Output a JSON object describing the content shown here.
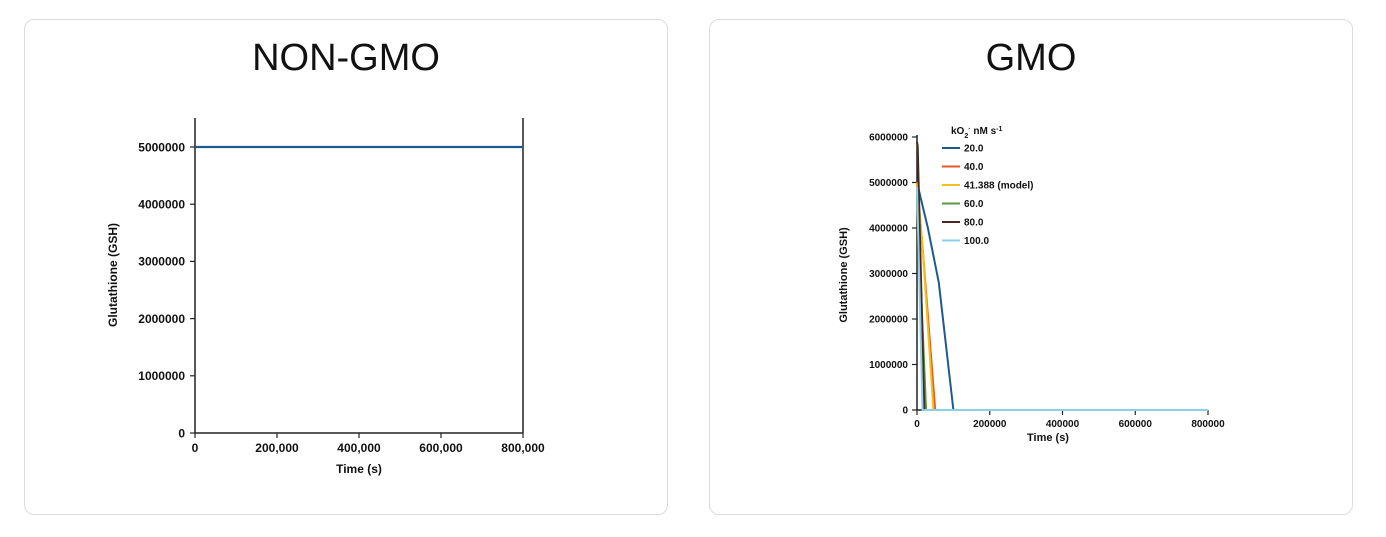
{
  "panels": [
    {
      "title": "NON-GMO"
    },
    {
      "title": "GMO"
    }
  ],
  "chart_data": [
    {
      "type": "line",
      "title": "NON-GMO",
      "xlabel": "Time (s)",
      "ylabel": "Glutathione (GSH)",
      "xlim": [
        0,
        800000
      ],
      "ylim": [
        0,
        5000000
      ],
      "x_ticks": [
        0,
        200000,
        400000,
        600000,
        800000
      ],
      "x_tick_labels": [
        "0",
        "200,000",
        "400,000",
        "600,000",
        "800,000"
      ],
      "y_ticks": [
        0,
        1000000,
        2000000,
        3000000,
        4000000,
        5000000
      ],
      "y_tick_labels": [
        "0",
        "1000000",
        "2000000",
        "3000000",
        "4000000",
        "5000000"
      ],
      "grid": false,
      "legend": null,
      "series": [
        {
          "color": "#1f5a8f",
          "points": [
            [
              0,
              5000000
            ],
            [
              800000,
              5000000
            ]
          ]
        }
      ]
    },
    {
      "type": "line",
      "title": "GMO",
      "xlabel": "Time (s)",
      "ylabel": "Glutathione (GSH)",
      "xlim": [
        0,
        800000
      ],
      "ylim": [
        0,
        6000000
      ],
      "x_ticks": [
        0,
        200000,
        400000,
        600000,
        800000
      ],
      "x_tick_labels": [
        "0",
        "200000",
        "400000",
        "600000",
        "800000"
      ],
      "y_ticks": [
        0,
        1000000,
        2000000,
        3000000,
        4000000,
        5000000,
        6000000
      ],
      "y_tick_labels": [
        "0",
        "1000000",
        "2000000",
        "3000000",
        "4000000",
        "5000000",
        "6000000"
      ],
      "grid": false,
      "legend": {
        "title": "kO2· nM s-1",
        "title_main": "kO",
        "title_sub": "2",
        "title_sup": "·",
        "title_rest": " nM s",
        "title_exp": "-1",
        "position": "top-left"
      },
      "series": [
        {
          "name": "20.0",
          "color": "#1f5a8f",
          "points": [
            [
              0,
              5000000
            ],
            [
              30000,
              4000000
            ],
            [
              60000,
              2800000
            ],
            [
              100000,
              0
            ],
            [
              800000,
              0
            ]
          ]
        },
        {
          "name": "40.0",
          "color": "#e8572a",
          "points": [
            [
              0,
              5000000
            ],
            [
              15000,
              3600000
            ],
            [
              50000,
              0
            ],
            [
              800000,
              0
            ]
          ]
        },
        {
          "name": "41.388 (model)",
          "color": "#f2c21b",
          "points": [
            [
              0,
              5000000
            ],
            [
              15000,
              3600000
            ],
            [
              45000,
              0
            ],
            [
              800000,
              0
            ]
          ]
        },
        {
          "name": "60.0",
          "color": "#5a9a3a",
          "points": [
            [
              0,
              4700000
            ],
            [
              25000,
              0
            ],
            [
              800000,
              0
            ]
          ]
        },
        {
          "name": "80.0",
          "color": "#4a2a20",
          "points": [
            [
              0,
              5900000
            ],
            [
              2000,
              5800000
            ],
            [
              20000,
              0
            ],
            [
              800000,
              0
            ]
          ]
        },
        {
          "name": "100.0",
          "color": "#8ecfe8",
          "points": [
            [
              0,
              4900000
            ],
            [
              15000,
              0
            ],
            [
              800000,
              0
            ]
          ]
        }
      ]
    }
  ]
}
